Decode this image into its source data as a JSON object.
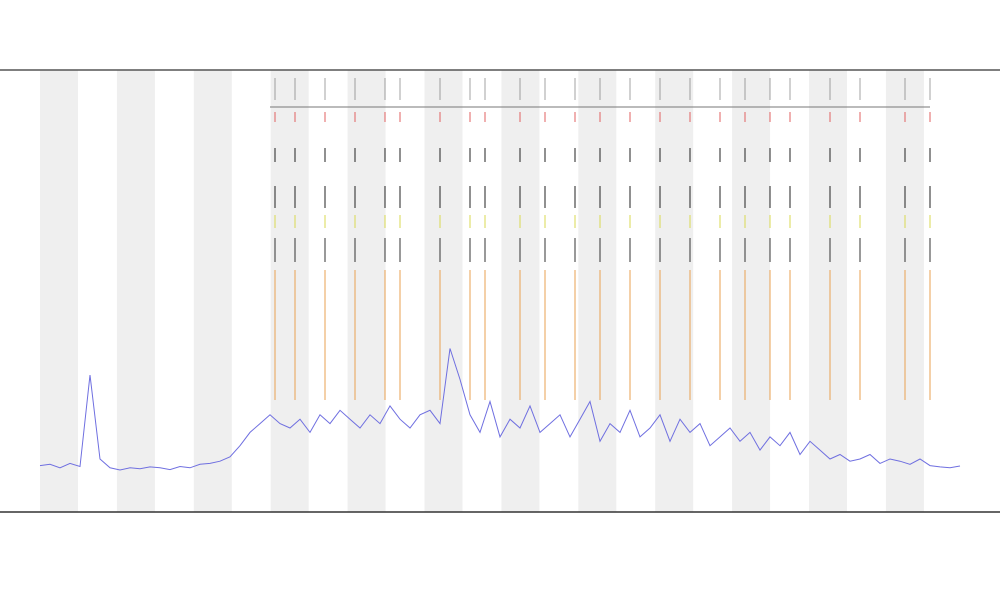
{
  "chart_data": {
    "type": "line",
    "ylim": [
      0,
      100
    ],
    "series": [
      {
        "color": "#6f6fe0",
        "values": [
          10.5,
          10.8,
          10,
          11,
          10.3,
          31,
          12,
          10,
          9.5,
          10,
          9.8,
          10.2,
          10,
          9.6,
          10.3,
          10,
          10.8,
          11,
          11.5,
          12.5,
          15,
          18,
          20,
          22,
          20,
          19,
          21,
          18,
          22,
          20,
          23,
          21,
          19,
          22,
          20,
          24,
          21,
          19,
          22,
          23,
          20,
          37,
          30,
          22,
          18,
          25,
          17,
          21,
          19,
          24,
          18,
          20,
          22,
          17,
          21,
          25,
          16,
          20,
          18,
          23,
          17,
          19,
          22,
          16,
          21,
          18,
          20,
          15,
          17,
          19,
          16,
          18,
          14,
          17,
          15,
          18,
          13,
          16,
          14,
          12,
          13,
          11.5,
          12,
          13,
          11,
          12,
          11.5,
          10.8,
          12,
          10.5,
          10.2,
          10,
          10.4
        ]
      }
    ],
    "events": {
      "color": "#e8a050",
      "x": [
        23.5,
        25.5,
        28.5,
        31.5,
        34.5,
        36,
        40,
        43,
        44.5,
        48,
        50.5,
        53.5,
        56,
        59,
        62,
        65,
        68,
        70.5,
        73,
        75,
        79,
        82,
        86.5,
        89
      ]
    }
  }
}
